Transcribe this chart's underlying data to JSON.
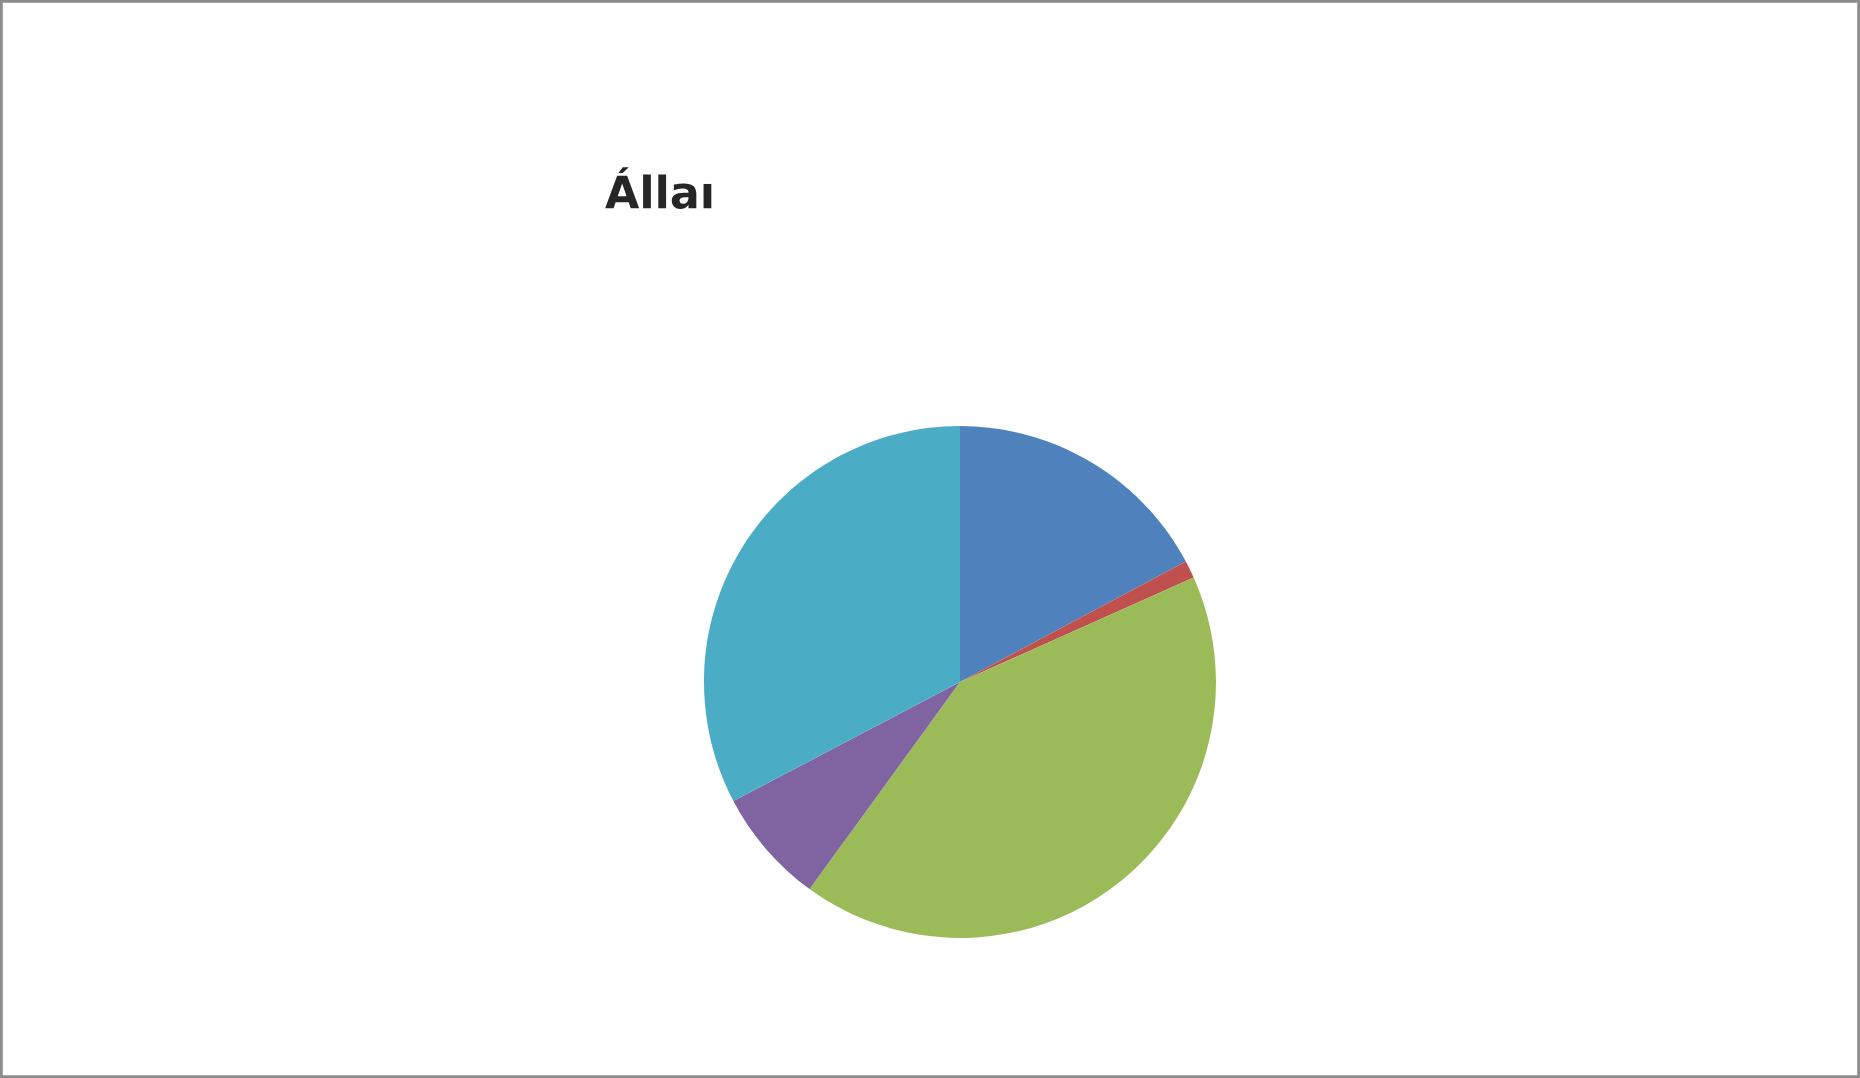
{
  "chart_data": {
    "type": "pie",
    "title": "Állaı",
    "categories": [
      null,
      null,
      null,
      null,
      null
    ],
    "values": [
      17.2,
      1.1,
      41.7,
      7.3,
      32.7
    ],
    "colors": [
      "#4f81bd",
      "#c0504d",
      "#9bbb59",
      "#8064a2",
      "#4bacc6"
    ]
  }
}
